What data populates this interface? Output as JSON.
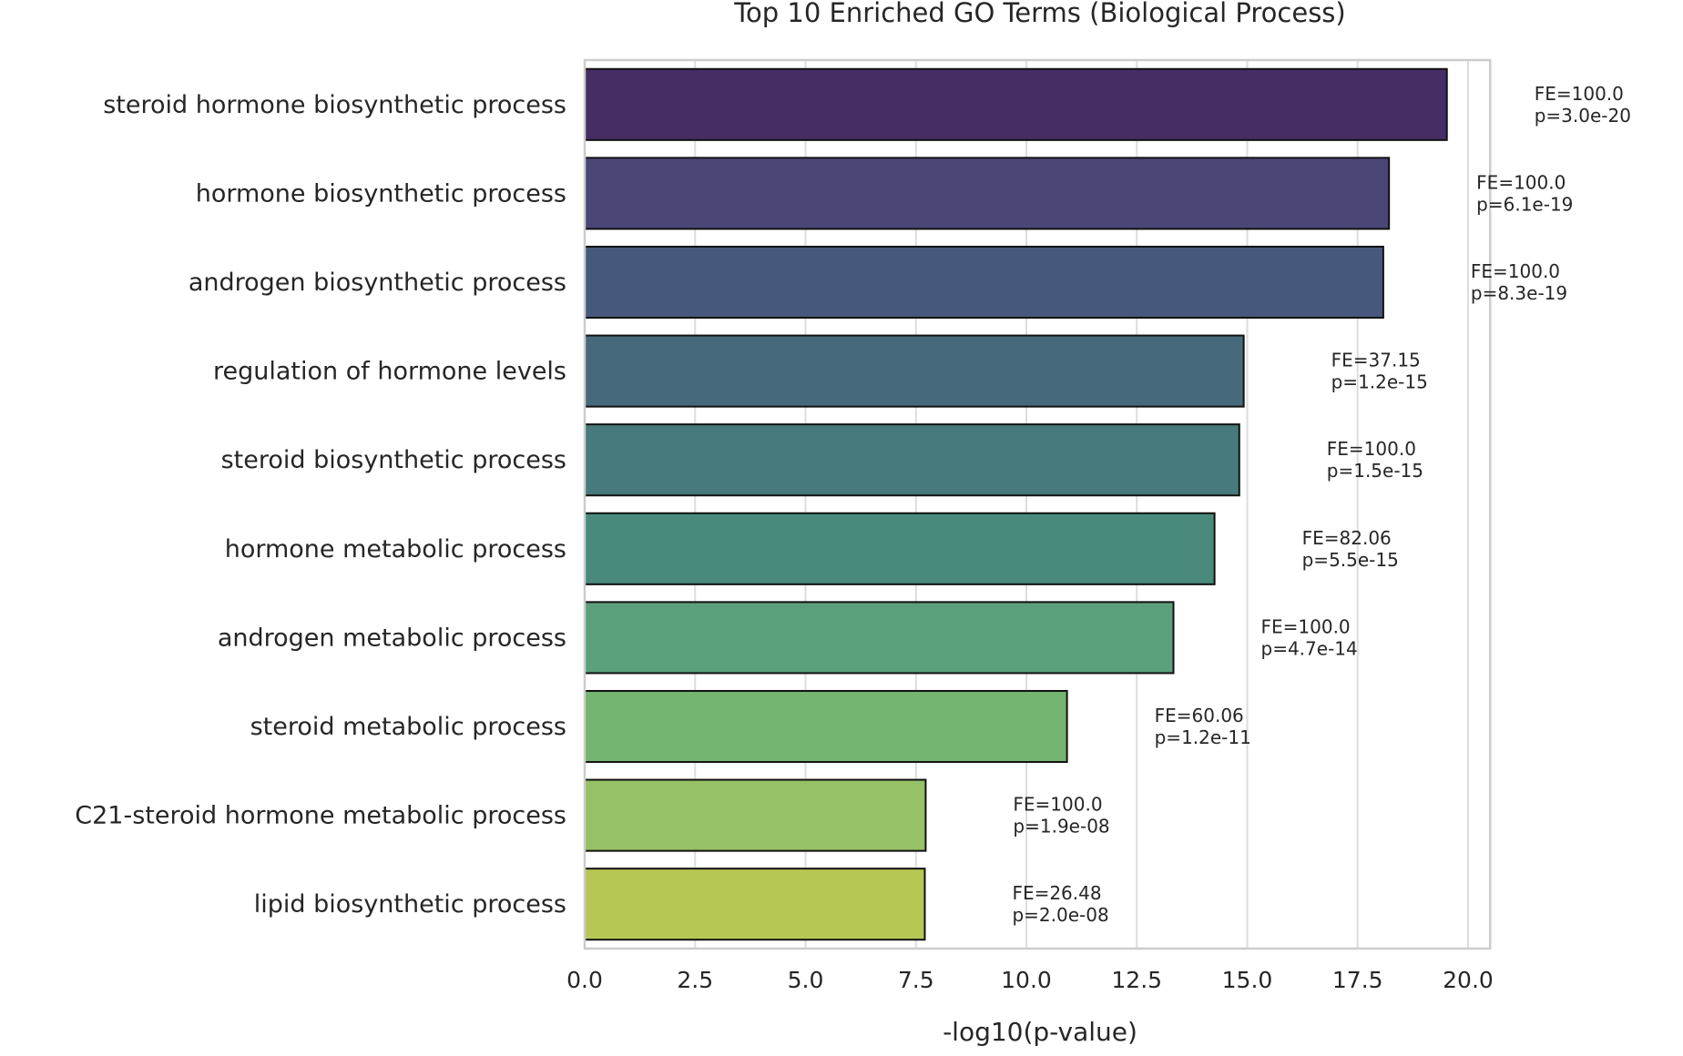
{
  "chart_data": {
    "type": "bar",
    "orientation": "horizontal",
    "title": "Top 10 Enriched GO Terms (Biological Process)",
    "xlabel": "-log10(p-value)",
    "ylabel": "",
    "xlim": [
      0,
      20.5
    ],
    "xticks": [
      "0.0",
      "2.5",
      "5.0",
      "7.5",
      "10.0",
      "12.5",
      "15.0",
      "17.5",
      "20.0"
    ],
    "grid": true,
    "categories": [
      "steroid hormone biosynthetic process",
      "hormone biosynthetic process",
      "androgen biosynthetic process",
      "regulation of hormone levels",
      "steroid biosynthetic process",
      "hormone metabolic process",
      "androgen metabolic process",
      "steroid metabolic process",
      "C21-steroid hormone metabolic process",
      "lipid biosynthetic process"
    ],
    "values": [
      19.52,
      18.21,
      18.08,
      14.92,
      14.82,
      14.26,
      13.33,
      10.92,
      7.72,
      7.7
    ],
    "fe_labels": [
      "FE=100.0",
      "FE=100.0",
      "FE=100.0",
      "FE=37.15",
      "FE=100.0",
      "FE=82.06",
      "FE=100.0",
      "FE=60.06",
      "FE=100.0",
      "FE=26.48"
    ],
    "p_labels": [
      "p=3.0e-20",
      "p=6.1e-19",
      "p=8.3e-19",
      "p=1.2e-15",
      "p=1.5e-15",
      "p=5.5e-15",
      "p=4.7e-14",
      "p=1.2e-11",
      "p=1.9e-08",
      "p=2.0e-08"
    ],
    "colors": [
      "#472d66",
      "#4a4776",
      "#46597c",
      "#466a7b",
      "#467a7b",
      "#4a8a7d",
      "#5c9f7b",
      "#74b571",
      "#96c166",
      "#b7c753"
    ]
  }
}
